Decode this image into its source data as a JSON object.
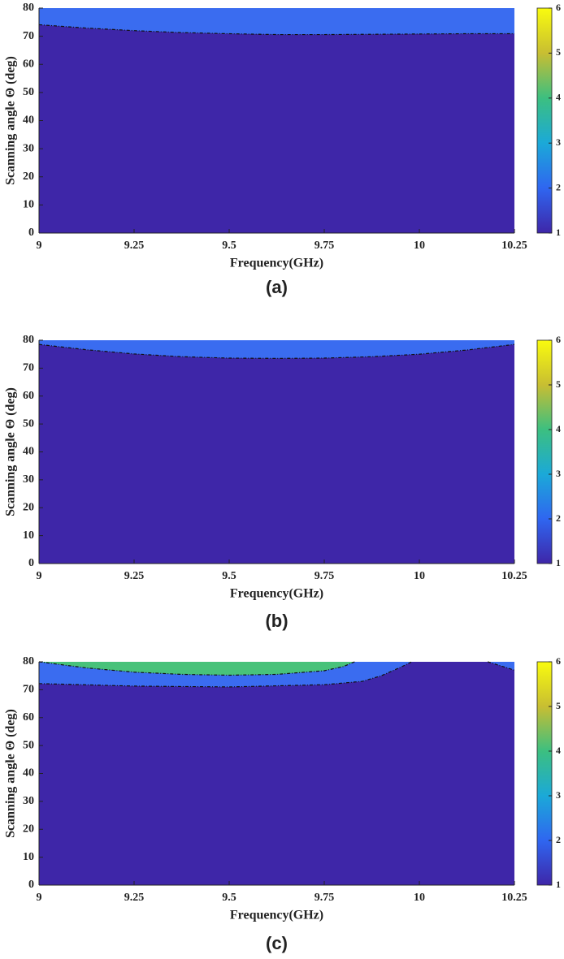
{
  "chart_data": [
    {
      "type": "contour",
      "caption": "(a)",
      "xlabel": "Frequency(GHz)",
      "ylabel": "Scanning angle Θ (deg)",
      "xlim": [
        9,
        10.25
      ],
      "ylim": [
        0,
        80
      ],
      "xticks": [
        9,
        9.25,
        9.5,
        9.75,
        10,
        10.25
      ],
      "yticks": [
        0,
        10,
        20,
        30,
        40,
        50,
        60,
        70,
        80
      ],
      "base_color": "#3e26a8",
      "lines": [
        {
          "color": "#3a6cf0",
          "x": [
            9,
            9.125,
            9.25,
            9.375,
            9.5,
            9.625,
            9.75,
            9.875,
            10,
            10.125,
            10.25
          ],
          "y": [
            74.1,
            72.9,
            72,
            71.3,
            70.9,
            70.6,
            70.6,
            70.7,
            70.8,
            70.9,
            70.9
          ]
        }
      ],
      "colorbar": {
        "lim": [
          1,
          6
        ],
        "ticks": [
          1,
          2,
          3,
          4,
          5,
          6
        ],
        "colors": [
          "#3e26a8",
          "#2f66f0",
          "#1ba9d8",
          "#3cbf80",
          "#c8be32",
          "#f9fb0e"
        ]
      }
    },
    {
      "type": "contour",
      "caption": "(b)",
      "xlabel": "Frequency(GHz)",
      "ylabel": "Scanning angle Θ (deg)",
      "xlim": [
        9,
        10.25
      ],
      "ylim": [
        0,
        80
      ],
      "xticks": [
        9,
        9.25,
        9.5,
        9.75,
        10,
        10.25
      ],
      "yticks": [
        0,
        10,
        20,
        30,
        40,
        50,
        60,
        70,
        80
      ],
      "base_color": "#3e26a8",
      "lines": [
        {
          "color": "#3a6cf0",
          "x": [
            9,
            9.125,
            9.25,
            9.375,
            9.5,
            9.625,
            9.75,
            9.875,
            10,
            10.125,
            10.25
          ],
          "y": [
            78.5,
            76.6,
            75.1,
            74.1,
            73.6,
            73.5,
            73.6,
            74.1,
            75,
            76.5,
            78.5
          ]
        }
      ],
      "colorbar": {
        "lim": [
          1,
          6
        ],
        "ticks": [
          1,
          2,
          3,
          4,
          5,
          6
        ],
        "colors": [
          "#3e26a8",
          "#2f66f0",
          "#1ba9d8",
          "#3cbf80",
          "#c8be32",
          "#f9fb0e"
        ]
      }
    },
    {
      "type": "contour",
      "caption": "(c)",
      "xlabel": "Frequency(GHz)",
      "ylabel": "Scanning angle Θ (deg)",
      "xlim": [
        9,
        10.25
      ],
      "ylim": [
        0,
        80
      ],
      "xticks": [
        9,
        9.25,
        9.5,
        9.75,
        10,
        10.25
      ],
      "yticks": [
        0,
        10,
        20,
        30,
        40,
        50,
        60,
        70,
        80
      ],
      "base_color": "#3e26a8",
      "lines": [
        {
          "color": "#3a6cf0",
          "x": [
            9,
            9.25,
            9.5,
            9.75,
            9.85,
            9.9,
            9.95,
            9.98,
            10.08,
            10.18,
            10.25
          ],
          "y": [
            72.2,
            71.3,
            71,
            71.8,
            73,
            75,
            78,
            80,
            null,
            80,
            77
          ]
        },
        {
          "color": "#48c27a",
          "x": [
            9,
            9.125,
            9.25,
            9.375,
            9.5,
            9.625,
            9.75,
            9.8,
            9.83
          ],
          "y": [
            80,
            77.8,
            76.3,
            75.5,
            75.2,
            75.5,
            76.8,
            78.3,
            80
          ]
        }
      ],
      "colorbar": {
        "lim": [
          1,
          6
        ],
        "ticks": [
          1,
          2,
          3,
          4,
          5,
          6
        ],
        "colors": [
          "#3e26a8",
          "#2f66f0",
          "#1ba9d8",
          "#3cbf80",
          "#c8be32",
          "#f9fb0e"
        ]
      }
    }
  ]
}
